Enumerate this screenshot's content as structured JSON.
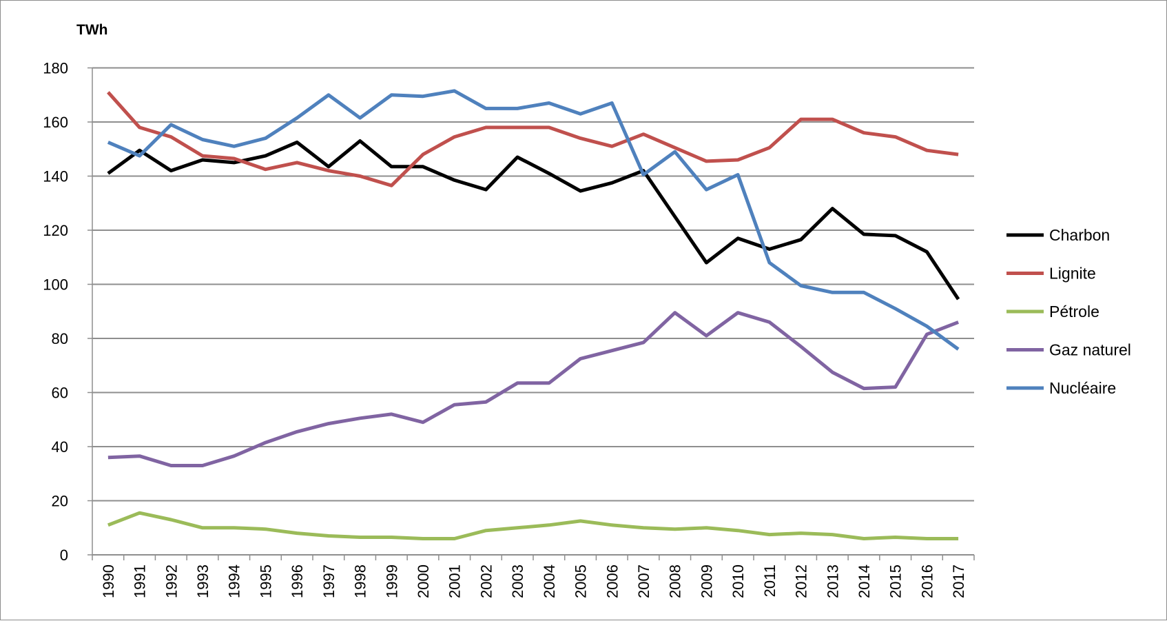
{
  "chart_data": {
    "type": "line",
    "title": "",
    "xlabel": "",
    "ylabel": "TWh",
    "ylim": [
      0,
      180
    ],
    "yticks": [
      0,
      20,
      40,
      60,
      80,
      100,
      120,
      140,
      160,
      180
    ],
    "grid": true,
    "legend_position": "right",
    "categories": [
      "1990",
      "1991",
      "1992",
      "1993",
      "1994",
      "1995",
      "1996",
      "1997",
      "1998",
      "1999",
      "2000",
      "2001",
      "2002",
      "2003",
      "2004",
      "2005",
      "2006",
      "2007",
      "2008",
      "2009",
      "2010",
      "2011",
      "2012",
      "2013",
      "2014",
      "2015",
      "2016",
      "2017"
    ],
    "series": [
      {
        "name": "Charbon",
        "color": "#000000",
        "values": [
          141,
          149.5,
          142,
          146,
          145,
          147.5,
          152.5,
          143.5,
          153,
          143.5,
          143.5,
          138.5,
          135,
          147,
          141,
          134.5,
          137.5,
          142,
          125,
          108,
          117,
          113,
          116.5,
          128,
          118.5,
          118,
          112,
          94.5
        ]
      },
      {
        "name": "Lignite",
        "color": "#c0504d",
        "values": [
          171,
          158,
          154.5,
          147.5,
          146.5,
          142.5,
          145,
          142,
          140,
          136.5,
          148,
          154.5,
          158,
          158,
          158,
          154,
          151,
          155.5,
          150.5,
          145.5,
          146,
          150.5,
          161,
          161,
          156,
          154.5,
          149.5,
          148
        ]
      },
      {
        "name": "Pétrole",
        "color": "#9bbb59",
        "values": [
          11,
          15.5,
          13,
          10,
          10,
          9.5,
          8,
          7,
          6.5,
          6.5,
          6,
          6,
          9,
          10,
          11,
          12.5,
          11,
          10,
          9.5,
          10,
          9,
          7.5,
          8,
          7.5,
          6,
          6.5,
          6,
          6
        ]
      },
      {
        "name": "Gaz naturel",
        "color": "#8064a2",
        "values": [
          36,
          36.5,
          33,
          33,
          36.5,
          41.5,
          45.5,
          48.5,
          50.5,
          52,
          49,
          55.5,
          56.5,
          63.5,
          63.5,
          72.5,
          75.5,
          78.5,
          89.5,
          81,
          89.5,
          86,
          77,
          67.5,
          61.5,
          62,
          81.5,
          86
        ]
      },
      {
        "name": "Nucléaire",
        "color": "#4f81bd",
        "values": [
          152.5,
          147.5,
          159,
          153.5,
          151,
          154,
          161.5,
          170,
          161.5,
          170,
          169.5,
          171.5,
          165,
          165,
          167,
          163,
          167,
          140.5,
          149,
          135,
          140.5,
          108,
          99.5,
          97,
          97,
          91,
          84.5,
          76
        ]
      }
    ]
  }
}
